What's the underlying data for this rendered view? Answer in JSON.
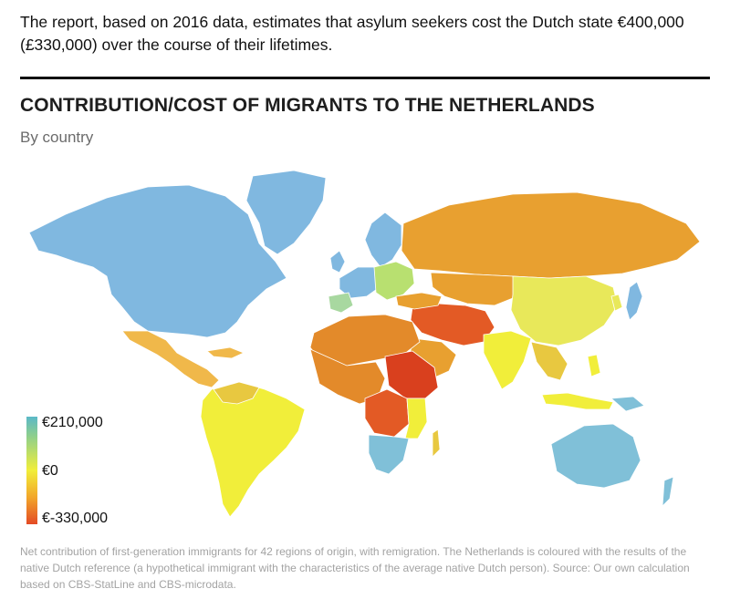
{
  "intro_text": "The report, based on 2016 data, estimates that asylum seekers cost the Dutch state €400,000 (£330,000) over the course of their lifetimes.",
  "chart": {
    "title": "CONTRIBUTION/COST OF MIGRANTS TO THE NETHERLANDS",
    "subtitle": "By country"
  },
  "legend": {
    "top_label": "€210,000",
    "mid_label": "€0",
    "bottom_label": "€-330,000",
    "colors": [
      "#5bb8c8",
      "#8ecf8c",
      "#f1ee3a",
      "#f2a62a",
      "#e34a25"
    ]
  },
  "chart_data": {
    "type": "heatmap",
    "scale_min": -330000,
    "scale_max": 210000,
    "scale_mid": 0,
    "regions": [
      {
        "region": "North America",
        "color": "#80b8e0"
      },
      {
        "region": "Greenland",
        "color": "#80b8e0"
      },
      {
        "region": "Mexico & Central America",
        "color": "#f0b84a"
      },
      {
        "region": "South America",
        "color": "#f1ee3a"
      },
      {
        "region": "Western Europe",
        "color": "#80b8e0"
      },
      {
        "region": "Scandinavia",
        "color": "#80b8e0"
      },
      {
        "region": "Southern Europe",
        "color": "#b8e070"
      },
      {
        "region": "Russia",
        "color": "#e8a030"
      },
      {
        "region": "China",
        "color": "#e8e85a"
      },
      {
        "region": "Japan",
        "color": "#80b8e0"
      },
      {
        "region": "India",
        "color": "#f1ee3a"
      },
      {
        "region": "Middle East",
        "color": "#e35a25"
      },
      {
        "region": "North Africa",
        "color": "#e38a2a"
      },
      {
        "region": "Horn of Africa",
        "color": "#d9401e"
      },
      {
        "region": "Southern Africa",
        "color": "#80c0d8"
      },
      {
        "region": "Southeast Asia",
        "color": "#e8c840"
      },
      {
        "region": "Australia",
        "color": "#80c0d8"
      }
    ]
  },
  "caption": "Net contribution of first-generation immigrants for 42 regions of origin, with remigration. The Netherlands is coloured with the results of the native Dutch reference (a hypothetical immigrant with the characteristics of the average native Dutch person). Source: Our own calculation based on CBS-StatLine and CBS-microdata."
}
